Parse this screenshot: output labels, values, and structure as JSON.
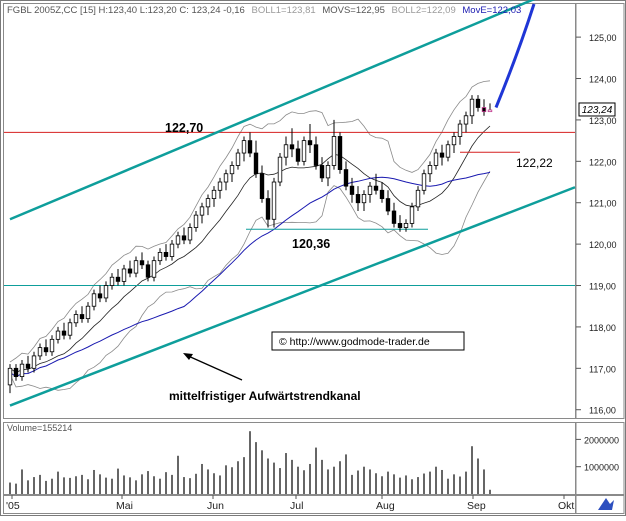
{
  "header": {
    "symbol": "FGBL 2005Z,CC [15]",
    "ohlc": "H:123,40 L:123,20 C: 123,24 -0,16",
    "boll1": "BOLL1=123,81",
    "movs": "MOVS=122,95",
    "boll2": "BOLL2=122,09",
    "move": "MovE=122,03"
  },
  "price_panel": {
    "ylabels": [
      "125,00",
      "124,00",
      "123,00",
      "122,00",
      "121,00",
      "120,00",
      "119,00",
      "118,00",
      "117,00",
      "116,00"
    ],
    "last_price": "123,24",
    "annotations": {
      "high": "122,70",
      "low": "120,36",
      "mid": "122,22",
      "copyright": "© http://www.godmode-trader.de",
      "channel": "mittelfristiger Aufwärtstrendkanal"
    }
  },
  "volume_panel": {
    "label": "Volume=155214",
    "ylabels": [
      "2000000",
      "1000000"
    ]
  },
  "xaxis": {
    "labels": [
      "'05",
      "Mai",
      "Jun",
      "Jul",
      "Aug",
      "Sep",
      "Okt"
    ]
  },
  "colors": {
    "channel": "#0e9e9b",
    "resistance": "#d62020",
    "support": "#0e9e9b",
    "ma": "#1a1ab0",
    "band": "#8a8a8a",
    "candle_up": "#ffffff",
    "candle_down": "#000000",
    "projection": "#1f36d6"
  },
  "chart_data": {
    "type": "candlestick",
    "period": "15 (daily)",
    "x_axis_months": [
      "'05",
      "Mai",
      "Jun",
      "Jul",
      "Aug",
      "Sep",
      "Okt"
    ],
    "ylim": [
      115.8,
      125.8
    ],
    "candles_ohlc": [
      [
        116.6,
        117.1,
        116.4,
        117.0
      ],
      [
        117.0,
        117.1,
        116.7,
        116.8
      ],
      [
        116.8,
        117.2,
        116.7,
        117.1
      ],
      [
        117.1,
        117.3,
        116.9,
        117.0
      ],
      [
        117.0,
        117.4,
        116.9,
        117.3
      ],
      [
        117.3,
        117.6,
        117.2,
        117.5
      ],
      [
        117.5,
        117.7,
        117.3,
        117.4
      ],
      [
        117.4,
        117.8,
        117.3,
        117.7
      ],
      [
        117.7,
        118.0,
        117.6,
        117.9
      ],
      [
        117.9,
        118.1,
        117.7,
        117.8
      ],
      [
        117.8,
        118.2,
        117.7,
        118.1
      ],
      [
        118.1,
        118.4,
        118.0,
        118.3
      ],
      [
        118.3,
        118.5,
        118.1,
        118.2
      ],
      [
        118.2,
        118.6,
        118.1,
        118.5
      ],
      [
        118.5,
        118.9,
        118.4,
        118.8
      ],
      [
        118.8,
        119.0,
        118.6,
        118.7
      ],
      [
        118.7,
        119.1,
        118.6,
        119.0
      ],
      [
        119.0,
        119.3,
        118.9,
        119.2
      ],
      [
        119.2,
        119.4,
        119.0,
        119.1
      ],
      [
        119.1,
        119.5,
        119.0,
        119.4
      ],
      [
        119.4,
        119.6,
        119.2,
        119.3
      ],
      [
        119.3,
        119.7,
        119.2,
        119.6
      ],
      [
        119.6,
        119.8,
        119.4,
        119.5
      ],
      [
        119.5,
        119.6,
        119.1,
        119.2
      ],
      [
        119.2,
        119.7,
        119.1,
        119.6
      ],
      [
        119.6,
        119.9,
        119.5,
        119.8
      ],
      [
        119.8,
        120.0,
        119.6,
        119.7
      ],
      [
        119.7,
        120.1,
        119.6,
        120.0
      ],
      [
        120.0,
        120.3,
        119.9,
        120.2
      ],
      [
        120.2,
        120.4,
        120.0,
        120.1
      ],
      [
        120.1,
        120.5,
        120.0,
        120.4
      ],
      [
        120.4,
        120.8,
        120.3,
        120.7
      ],
      [
        120.7,
        121.0,
        120.5,
        120.9
      ],
      [
        120.9,
        121.2,
        120.7,
        121.1
      ],
      [
        121.1,
        121.4,
        120.9,
        121.3
      ],
      [
        121.3,
        121.6,
        121.1,
        121.5
      ],
      [
        121.5,
        121.8,
        121.3,
        121.7
      ],
      [
        121.7,
        122.0,
        121.5,
        121.9
      ],
      [
        121.9,
        122.3,
        121.8,
        122.2
      ],
      [
        122.2,
        122.6,
        122.0,
        122.5
      ],
      [
        122.5,
        122.7,
        122.1,
        122.2
      ],
      [
        122.2,
        122.5,
        121.6,
        121.7
      ],
      [
        121.7,
        121.9,
        121.0,
        121.1
      ],
      [
        121.1,
        121.3,
        120.4,
        120.6
      ],
      [
        120.6,
        121.6,
        120.4,
        121.5
      ],
      [
        121.5,
        122.2,
        121.4,
        122.1
      ],
      [
        122.1,
        122.6,
        121.9,
        122.4
      ],
      [
        122.4,
        122.8,
        122.1,
        122.3
      ],
      [
        122.3,
        122.5,
        121.9,
        122.0
      ],
      [
        122.0,
        122.6,
        121.9,
        122.5
      ],
      [
        122.5,
        122.9,
        122.2,
        122.4
      ],
      [
        122.4,
        122.6,
        121.8,
        121.9
      ],
      [
        121.9,
        122.1,
        121.5,
        121.6
      ],
      [
        121.6,
        122.0,
        121.4,
        121.9
      ],
      [
        121.9,
        123.0,
        121.8,
        122.6
      ],
      [
        122.6,
        122.7,
        121.7,
        121.8
      ],
      [
        121.8,
        122.0,
        121.3,
        121.4
      ],
      [
        121.4,
        121.6,
        121.0,
        121.2
      ],
      [
        121.2,
        121.4,
        120.8,
        121.0
      ],
      [
        121.0,
        121.3,
        120.8,
        121.2
      ],
      [
        121.2,
        121.5,
        121.0,
        121.4
      ],
      [
        121.4,
        121.7,
        121.2,
        121.3
      ],
      [
        121.3,
        121.5,
        121.0,
        121.1
      ],
      [
        121.1,
        121.3,
        120.7,
        120.8
      ],
      [
        120.8,
        121.0,
        120.4,
        120.5
      ],
      [
        120.5,
        120.7,
        120.3,
        120.4
      ],
      [
        120.4,
        120.6,
        120.3,
        120.5
      ],
      [
        120.5,
        121.0,
        120.4,
        120.9
      ],
      [
        120.9,
        121.4,
        120.8,
        121.3
      ],
      [
        121.3,
        121.8,
        121.2,
        121.7
      ],
      [
        121.7,
        122.0,
        121.5,
        121.9
      ],
      [
        121.9,
        122.3,
        121.8,
        122.2
      ],
      [
        122.2,
        122.4,
        121.9,
        122.1
      ],
      [
        122.1,
        122.5,
        122.0,
        122.4
      ],
      [
        122.4,
        122.7,
        122.2,
        122.6
      ],
      [
        122.6,
        123.0,
        122.4,
        122.9
      ],
      [
        122.9,
        123.2,
        122.7,
        123.1
      ],
      [
        123.1,
        123.6,
        122.9,
        123.5
      ],
      [
        123.5,
        123.6,
        123.2,
        123.3
      ],
      [
        123.3,
        123.5,
        123.1,
        123.2
      ],
      [
        123.2,
        123.4,
        123.2,
        123.24
      ]
    ],
    "horizontal_lines": [
      {
        "name": "resistance",
        "value": 122.7
      },
      {
        "name": "support",
        "value": 120.36
      },
      {
        "name": "level",
        "value": 122.22
      },
      {
        "name": "horizontal",
        "value": 119.0
      }
    ],
    "trend_channel": {
      "upper": {
        "from_index": 0,
        "from_value": 120.6,
        "to_index": 92,
        "to_value": 126.2
      },
      "lower": {
        "from_index": 0,
        "from_value": 116.1,
        "to_index": 100,
        "to_value": 121.7
      }
    },
    "projection": {
      "from_value": 123.3,
      "to_value": 125.8
    },
    "volume": [
      420000,
      380000,
      900000,
      500000,
      620000,
      700000,
      480000,
      560000,
      820000,
      610000,
      590000,
      650000,
      700000,
      540000,
      880000,
      720000,
      600000,
      560000,
      930000,
      680000,
      610000,
      500000,
      720000,
      840000,
      650000,
      560000,
      800000,
      700000,
      1400000,
      620000,
      580000,
      740000,
      1100000,
      900000,
      760000,
      680000,
      1050000,
      980000,
      1200000,
      1350000,
      2300000,
      1900000,
      1600000,
      1300000,
      1150000,
      950000,
      1500000,
      1250000,
      1000000,
      870000,
      1100000,
      1700000,
      1250000,
      900000,
      1000000,
      1200000,
      1450000,
      700000,
      860000,
      1000000,
      900000,
      760000,
      650000,
      820000,
      720000,
      600000,
      680000,
      540000,
      620000,
      750000,
      820000,
      1000000,
      880000,
      560000,
      720000,
      640000,
      820000,
      1750000,
      1300000,
      900000,
      155214
    ],
    "volume_ylim": [
      0,
      2600000
    ]
  }
}
